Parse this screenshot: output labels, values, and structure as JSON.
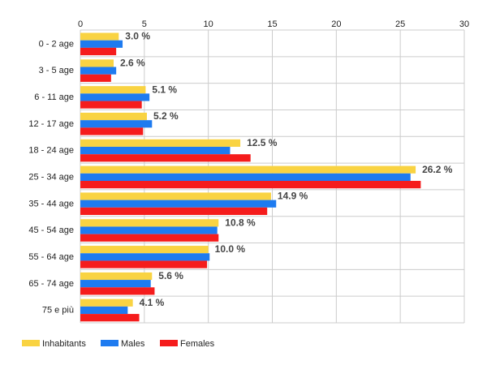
{
  "chart_data": {
    "type": "bar",
    "orientation": "horizontal",
    "categories": [
      "0 - 2 age",
      "3 - 5 age",
      "6 - 11 age",
      "12 - 17 age",
      "18 - 24 age",
      "25 - 34 age",
      "35 - 44 age",
      "45 - 54 age",
      "55 - 64 age",
      "65 - 74 age",
      "75 e più"
    ],
    "series": [
      {
        "name": "Inhabitants",
        "color": "#f9d342",
        "values": [
          3.0,
          2.6,
          5.1,
          5.2,
          12.5,
          26.2,
          14.9,
          10.8,
          10.0,
          5.6,
          4.1
        ]
      },
      {
        "name": "Males",
        "color": "#1e7bf0",
        "values": [
          3.3,
          2.8,
          5.4,
          5.6,
          11.7,
          25.8,
          15.3,
          10.7,
          10.1,
          5.5,
          3.7
        ]
      },
      {
        "name": "Females",
        "color": "#f51c1c",
        "values": [
          2.8,
          2.4,
          4.8,
          4.9,
          13.3,
          26.6,
          14.6,
          10.8,
          9.9,
          5.8,
          4.6
        ]
      }
    ],
    "data_labels": [
      "3.0 %",
      "2.6 %",
      "5.1 %",
      "5.2 %",
      "12.5 %",
      "26.2 %",
      "14.9 %",
      "10.8 %",
      "10.0 %",
      "5.6 %",
      "4.1 %"
    ],
    "xlim": [
      0,
      30
    ],
    "x_ticks": [
      "0",
      "5",
      "10",
      "15",
      "20",
      "25",
      "30"
    ],
    "grid": true,
    "legend_position": "bottom-left"
  }
}
